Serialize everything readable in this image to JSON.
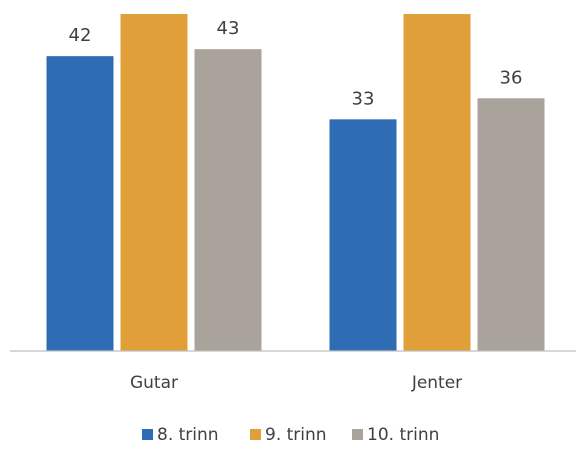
{
  "chart_data": {
    "type": "bar",
    "categories": [
      "Gutar",
      "Jenter"
    ],
    "series": [
      {
        "name": "8. trinn",
        "values": [
          42,
          33
        ],
        "color": "#2e6db4"
      },
      {
        "name": "9. trinn",
        "values": [
          48,
          48
        ],
        "color": "#e09f38"
      },
      {
        "name": "10. trinn",
        "values": [
          43,
          36
        ],
        "color": "#aaa39b"
      }
    ],
    "title": "",
    "xlabel": "",
    "ylabel": "",
    "ylim": [
      0,
      50
    ],
    "grid": false,
    "legend": "bottom",
    "data_labels": true,
    "axis_line_color": "#bfbfbf"
  }
}
